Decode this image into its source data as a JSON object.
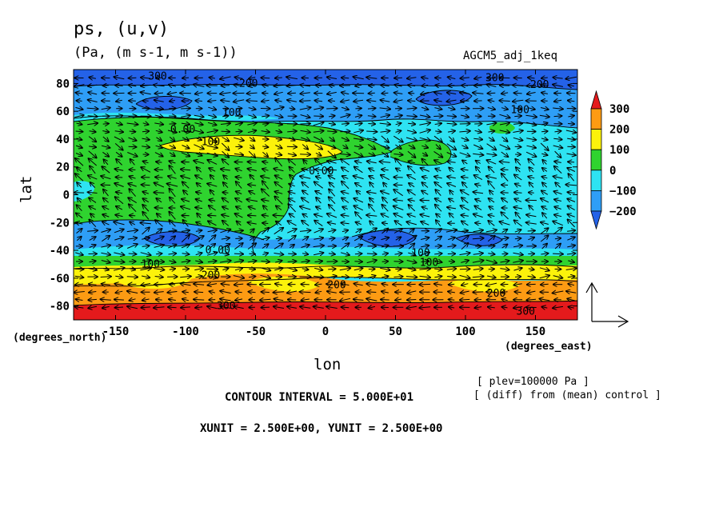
{
  "chart_data": {
    "type": "heatmap",
    "title": "ps, (u,v)",
    "units_line": "(Pa, (m s-1, m s-1))",
    "experiment": "AGCM5_adj_1keq",
    "xlabel": "lon",
    "ylabel": "lat",
    "x_unit_label": "(degrees_east)",
    "y_unit_label": "(degrees_north)",
    "xlim": [
      -180,
      180
    ],
    "ylim": [
      -90,
      90
    ],
    "x_ticks": [
      "-150",
      "-100",
      "-50",
      "0",
      "50",
      "100",
      "150"
    ],
    "x_tick_values": [
      -150,
      -100,
      -50,
      0,
      50,
      100,
      150
    ],
    "y_ticks": [
      "-80",
      "-60",
      "-40",
      "-20",
      "0",
      "20",
      "40",
      "60",
      "80"
    ],
    "y_tick_values": [
      -80,
      -60,
      -40,
      -20,
      0,
      20,
      40,
      60,
      80
    ],
    "colorbar": {
      "labels": [
        "300",
        "200",
        "100",
        "0",
        "−100",
        "−200"
      ],
      "levels": [
        300,
        200,
        100,
        0,
        -100,
        -200
      ],
      "colors": [
        "#e41a1c",
        "#fd9b13",
        "#fcf20b",
        "#2fd32f",
        "#2ee3f2",
        "#2e9ef6",
        "#2462e8"
      ]
    },
    "contour_labels": [
      {
        "text": "300",
        "lon": -120,
        "lat": 85
      },
      {
        "text": "200",
        "lon": -55,
        "lat": 80
      },
      {
        "text": "100",
        "lon": -67,
        "lat": 59
      },
      {
        "text": "0.00",
        "lon": -102,
        "lat": 47
      },
      {
        "text": "100",
        "lon": -82,
        "lat": 38
      },
      {
        "text": "0.00",
        "lon": -3,
        "lat": 17
      },
      {
        "text": "300",
        "lon": 121,
        "lat": 84
      },
      {
        "text": "200",
        "lon": 153,
        "lat": 79
      },
      {
        "text": "100",
        "lon": 139,
        "lat": 61
      },
      {
        "text": "0.00",
        "lon": -77,
        "lat": -40
      },
      {
        "text": "100",
        "lon": -125,
        "lat": -50
      },
      {
        "text": "200",
        "lon": -82,
        "lat": -58
      },
      {
        "text": "100",
        "lon": 68,
        "lat": -42
      },
      {
        "text": "100",
        "lon": 74,
        "lat": -49
      },
      {
        "text": "200",
        "lon": 8,
        "lat": -65
      },
      {
        "text": "200",
        "lon": 122,
        "lat": -71
      },
      {
        "text": "300",
        "lon": -71,
        "lat": -80
      },
      {
        "text": "300",
        "lon": 143,
        "lat": -84
      }
    ],
    "plev_note": "[ plev=100000 Pa ]",
    "diff_note": "[ (diff) from (mean) control ]",
    "contour_interval": "CONTOUR INTERVAL = 5.000E+01",
    "xy_unit": "XUNIT = 2.500E+00, YUNIT = 2.500E+00"
  }
}
